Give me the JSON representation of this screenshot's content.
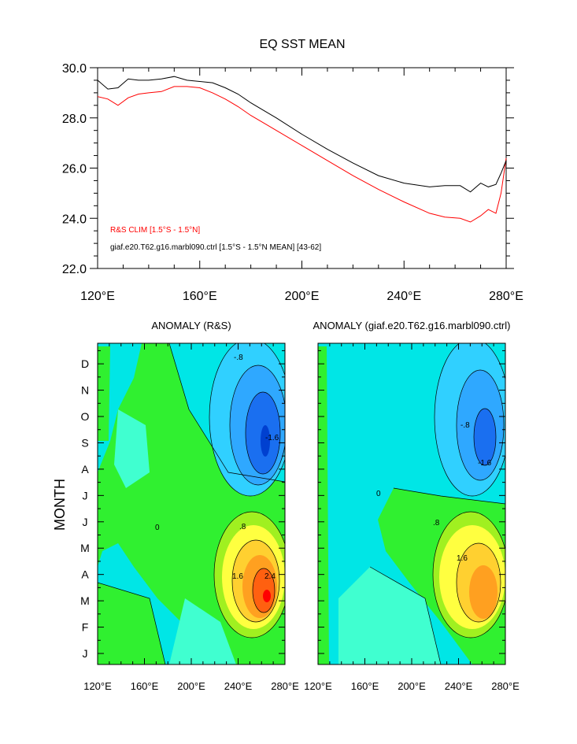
{
  "chart_data": [
    {
      "type": "line",
      "title": "EQ SST MEAN",
      "xlabel": "",
      "ylabel": "",
      "xlim": [
        120,
        280
      ],
      "ylim": [
        22.0,
        30.0
      ],
      "x_ticks": [
        "120°E",
        "160°E",
        "200°E",
        "240°E",
        "280°E"
      ],
      "x_tick_values": [
        120,
        160,
        200,
        240,
        280
      ],
      "y_ticks": [
        "30.0",
        "28.0",
        "26.0",
        "24.0",
        "22.0"
      ],
      "y_tick_values": [
        30,
        28,
        26,
        24,
        22
      ],
      "grid": false,
      "series": [
        {
          "name": "R&S CLIM [1.5°S - 1.5°N]",
          "color": "#ff0000",
          "x": [
            120,
            124,
            128,
            132,
            136,
            140,
            145,
            150,
            155,
            160,
            165,
            170,
            175,
            180,
            185,
            190,
            200,
            210,
            220,
            230,
            240,
            250,
            256,
            262,
            266,
            270,
            273,
            276,
            278,
            280
          ],
          "y": [
            28.85,
            28.75,
            28.5,
            28.8,
            28.95,
            29.0,
            29.05,
            29.25,
            29.25,
            29.2,
            29.0,
            28.75,
            28.45,
            28.1,
            27.8,
            27.5,
            26.9,
            26.3,
            25.7,
            25.15,
            24.65,
            24.2,
            24.05,
            24.0,
            23.85,
            24.1,
            24.35,
            24.2,
            25.0,
            26.4
          ]
        },
        {
          "name": "giaf.e20.T62.g16.marbl090.ctrl [1.5°S - 1.5°N MEAN] [43-62]",
          "color": "#000000",
          "x": [
            120,
            124,
            128,
            132,
            136,
            140,
            145,
            150,
            155,
            160,
            165,
            170,
            175,
            180,
            185,
            190,
            200,
            210,
            220,
            230,
            240,
            250,
            256,
            262,
            266,
            270,
            273,
            276,
            278,
            280
          ],
          "y": [
            29.5,
            29.15,
            29.2,
            29.55,
            29.5,
            29.5,
            29.55,
            29.65,
            29.5,
            29.45,
            29.4,
            29.2,
            28.95,
            28.6,
            28.3,
            28.0,
            27.35,
            26.75,
            26.2,
            25.7,
            25.4,
            25.25,
            25.3,
            25.3,
            25.05,
            25.4,
            25.25,
            25.35,
            25.8,
            26.3
          ]
        }
      ]
    },
    {
      "type": "heatmap",
      "title": "ANOMALY (R&S)",
      "xlabel": "",
      "ylabel": "MONTH",
      "xlim": [
        120,
        280
      ],
      "x_ticks": [
        "120°E",
        "160°E",
        "200°E",
        "240°E",
        "280°E"
      ],
      "x_tick_values": [
        120,
        160,
        200,
        240,
        280
      ],
      "y_ticks": [
        "J",
        "F",
        "M",
        "A",
        "M",
        "J",
        "J",
        "A",
        "S",
        "O",
        "N",
        "D"
      ],
      "contour_labels": [
        "0",
        "-.8",
        "-1.6",
        ".8",
        "1.6",
        "2.4"
      ],
      "features": [
        {
          "kind": "cold",
          "x": 265,
          "month": 9,
          "peak": -2.2
        },
        {
          "kind": "warm",
          "x": 262,
          "month": 3,
          "peak": 2.8
        },
        {
          "kind": "weak_warm_band",
          "x": 200,
          "month": 6,
          "peak": 0.5
        }
      ],
      "colors": [
        "#0040d0",
        "#1a6ff0",
        "#2fa8ff",
        "#30d0ff",
        "#00e6e6",
        "#40ffd0",
        "#30f030",
        "#a0f020",
        "#ffff40",
        "#ffd030",
        "#ffa020",
        "#ff6010",
        "#ff0000"
      ]
    },
    {
      "type": "heatmap",
      "title": "ANOMALY (giaf.e20.T62.g16.marbl090.ctrl)",
      "xlabel": "",
      "ylabel": "",
      "xlim": [
        120,
        280
      ],
      "x_ticks": [
        "120°E",
        "160°E",
        "200°E",
        "240°E",
        "280°E"
      ],
      "x_tick_values": [
        120,
        160,
        200,
        240,
        280
      ],
      "contour_labels": [
        "0",
        "-.8",
        "-1.6",
        ".8",
        "1.6"
      ],
      "features": [
        {
          "kind": "cold",
          "x": 262,
          "month": 9,
          "peak": -1.9
        },
        {
          "kind": "warm",
          "x": 262,
          "month": 3.3,
          "peak": 2.0
        },
        {
          "kind": "weak_warm_band",
          "x": 200,
          "month": 6,
          "peak": 0.5
        }
      ]
    }
  ]
}
